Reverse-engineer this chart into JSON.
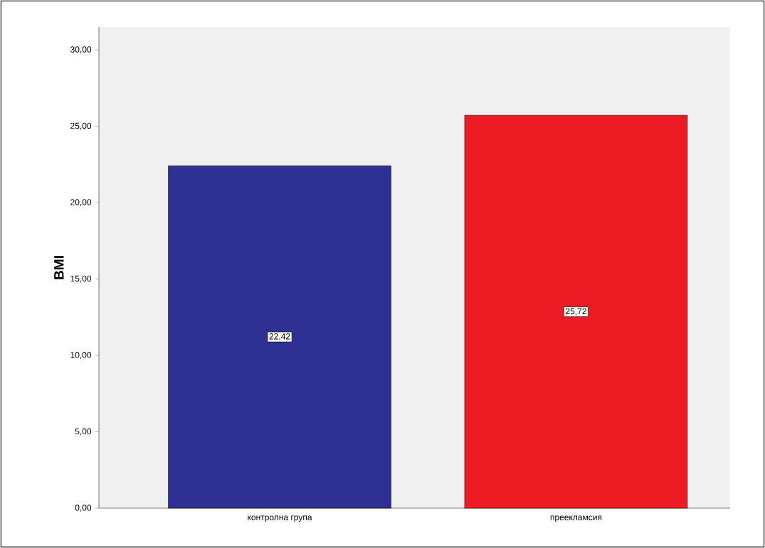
{
  "chart_data": {
    "type": "bar",
    "ylabel": "BMI",
    "categories": [
      "контролна група",
      "преекламсия"
    ],
    "values": [
      22.42,
      25.72
    ],
    "colors": [
      "#2e3192",
      "#ed1c24"
    ],
    "value_labels": [
      "22,42",
      "25,72"
    ],
    "ylim": [
      0,
      31.5
    ],
    "yticks": [
      {
        "value": 0,
        "label": "0,00"
      },
      {
        "value": 5,
        "label": "5,00"
      },
      {
        "value": 10,
        "label": "10,00"
      },
      {
        "value": 15,
        "label": "15,00"
      },
      {
        "value": 20,
        "label": "20,00"
      },
      {
        "value": 25,
        "label": "25,00"
      },
      {
        "value": 30,
        "label": "30,00"
      }
    ]
  }
}
